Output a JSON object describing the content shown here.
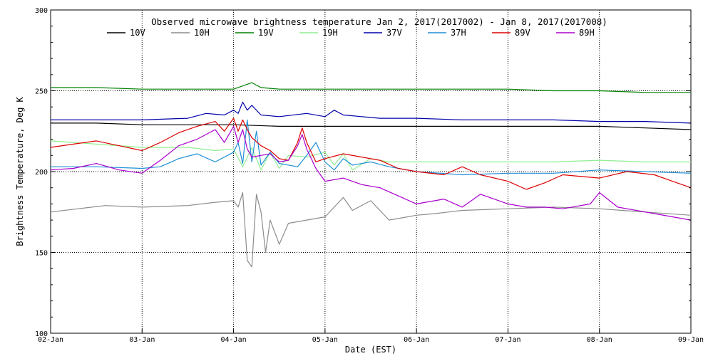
{
  "chart_data": {
    "type": "line",
    "title": "Observed microwave brightness temperature Jan  2, 2017(2017002) - Jan  8, 2017(2017008)",
    "xlabel": "Date (EST)",
    "ylabel": "Brightness Temperature, Deg K",
    "x_ticks": [
      "02-Jan",
      "03-Jan",
      "04-Jan",
      "05-Jan",
      "06-Jan",
      "07-Jan",
      "08-Jan",
      "09-Jan"
    ],
    "y_ticks": [
      "100",
      "150",
      "200",
      "250",
      "300"
    ],
    "ylim": [
      100,
      300
    ],
    "x_unit": "days since 02-Jan",
    "xlim": [
      0,
      7
    ],
    "grid": true,
    "legend_placement": "top",
    "series": [
      {
        "name": "10V",
        "color": "#000000",
        "x": [
          0,
          0.5,
          1,
          1.5,
          2,
          2.5,
          3,
          3.5,
          4,
          4.5,
          5,
          5.5,
          6,
          6.5,
          7
        ],
        "y": [
          230,
          230,
          229,
          229,
          229,
          228,
          228,
          228,
          228,
          228,
          228,
          228,
          228,
          227,
          226
        ]
      },
      {
        "name": "10H",
        "color": "#8c8c8c",
        "x": [
          0,
          0.3,
          0.6,
          1,
          1.5,
          1.8,
          2,
          2.05,
          2.1,
          2.15,
          2.2,
          2.25,
          2.3,
          2.35,
          2.4,
          2.5,
          2.6,
          2.8,
          3,
          3.1,
          3.2,
          3.3,
          3.5,
          3.7,
          3.9,
          4,
          4.2,
          4.5,
          5,
          5.5,
          6,
          6.5,
          7
        ],
        "y": [
          175,
          177,
          179,
          178,
          179,
          181,
          182,
          178,
          187,
          145,
          141,
          186,
          175,
          150,
          170,
          155,
          168,
          170,
          172,
          178,
          184,
          176,
          182,
          170,
          172,
          173,
          174,
          176,
          177,
          178,
          177,
          175,
          173
        ]
      },
      {
        "name": "19V",
        "color": "#008000",
        "x": [
          0,
          0.5,
          1,
          1.5,
          2,
          2.1,
          2.2,
          2.3,
          2.5,
          3,
          3.5,
          4,
          4.5,
          5,
          5.5,
          6,
          6.5,
          7
        ],
        "y": [
          252,
          252,
          251,
          251,
          251,
          253,
          255,
          252,
          251,
          251,
          251,
          251,
          251,
          251,
          250,
          250,
          249,
          249
        ]
      },
      {
        "name": "19H",
        "color": "#90ee90",
        "x": [
          0,
          0.5,
          1,
          1.5,
          1.8,
          2,
          2.1,
          2.2,
          2.3,
          2.4,
          2.5,
          2.6,
          2.8,
          3,
          3.1,
          3.2,
          3.3,
          3.5,
          3.7,
          4,
          4.5,
          5,
          5.5,
          6,
          6.5,
          7
        ],
        "y": [
          219,
          217,
          215,
          215,
          213,
          214,
          203,
          215,
          201,
          212,
          202,
          210,
          209,
          212,
          204,
          211,
          201,
          208,
          206,
          206,
          206,
          206,
          206,
          207,
          206,
          206
        ]
      },
      {
        "name": "37V",
        "color": "#0000aa",
        "x": [
          0,
          0.5,
          1,
          1.5,
          1.7,
          1.9,
          2,
          2.05,
          2.1,
          2.15,
          2.2,
          2.3,
          2.5,
          2.8,
          3,
          3.1,
          3.2,
          3.4,
          3.6,
          4,
          4.5,
          5,
          5.5,
          6,
          6.5,
          7
        ],
        "y": [
          232,
          232,
          232,
          233,
          236,
          235,
          238,
          236,
          243,
          238,
          241,
          235,
          234,
          236,
          234,
          238,
          235,
          234,
          233,
          233,
          232,
          232,
          232,
          231,
          231,
          230
        ]
      },
      {
        "name": "37H",
        "color": "#1e8fd6",
        "x": [
          0,
          0.5,
          1,
          1.2,
          1.4,
          1.6,
          1.8,
          2,
          2.05,
          2.1,
          2.15,
          2.2,
          2.25,
          2.3,
          2.4,
          2.5,
          2.7,
          2.8,
          2.9,
          3,
          3.1,
          3.2,
          3.3,
          3.5,
          3.7,
          4,
          4.5,
          5,
          5.5,
          6,
          6.5,
          7
        ],
        "y": [
          203,
          203,
          202,
          203,
          208,
          211,
          206,
          212,
          218,
          205,
          232,
          206,
          225,
          204,
          212,
          205,
          203,
          210,
          218,
          206,
          201,
          208,
          204,
          206,
          203,
          200,
          198,
          199,
          199,
          201,
          200,
          199
        ]
      },
      {
        "name": "89V",
        "color": "#dd0000",
        "x": [
          0,
          0.25,
          0.5,
          0.75,
          1,
          1.2,
          1.4,
          1.6,
          1.8,
          1.9,
          2,
          2.05,
          2.1,
          2.15,
          2.2,
          2.3,
          2.4,
          2.5,
          2.6,
          2.7,
          2.75,
          2.8,
          2.85,
          2.9,
          3,
          3.2,
          3.4,
          3.6,
          3.8,
          4,
          4.3,
          4.5,
          4.7,
          5,
          5.2,
          5.4,
          5.6,
          6,
          6.3,
          6.6,
          7
        ],
        "y": [
          215,
          217,
          219,
          216,
          213,
          218,
          224,
          228,
          231,
          225,
          233,
          225,
          232,
          226,
          221,
          216,
          213,
          208,
          207,
          218,
          227,
          218,
          212,
          206,
          208,
          211,
          209,
          207,
          202,
          200,
          198,
          203,
          198,
          194,
          189,
          193,
          198,
          196,
          200,
          198,
          190
        ]
      },
      {
        "name": "89H",
        "color": "#aa00cc",
        "x": [
          0,
          0.25,
          0.5,
          0.75,
          1,
          1.2,
          1.4,
          1.6,
          1.8,
          1.9,
          2,
          2.05,
          2.1,
          2.15,
          2.2,
          2.3,
          2.4,
          2.5,
          2.6,
          2.7,
          2.75,
          2.8,
          2.85,
          2.9,
          3,
          3.2,
          3.4,
          3.6,
          3.8,
          4,
          4.3,
          4.5,
          4.7,
          5,
          5.2,
          5.4,
          5.6,
          5.9,
          6,
          6.2,
          6.6,
          7
        ],
        "y": [
          201,
          202,
          205,
          201,
          199,
          207,
          216,
          220,
          226,
          218,
          228,
          218,
          226,
          214,
          209,
          210,
          211,
          206,
          207,
          216,
          223,
          214,
          208,
          202,
          194,
          196,
          192,
          190,
          185,
          180,
          183,
          178,
          186,
          180,
          178,
          178,
          177,
          180,
          187,
          178,
          174,
          170
        ]
      }
    ]
  }
}
